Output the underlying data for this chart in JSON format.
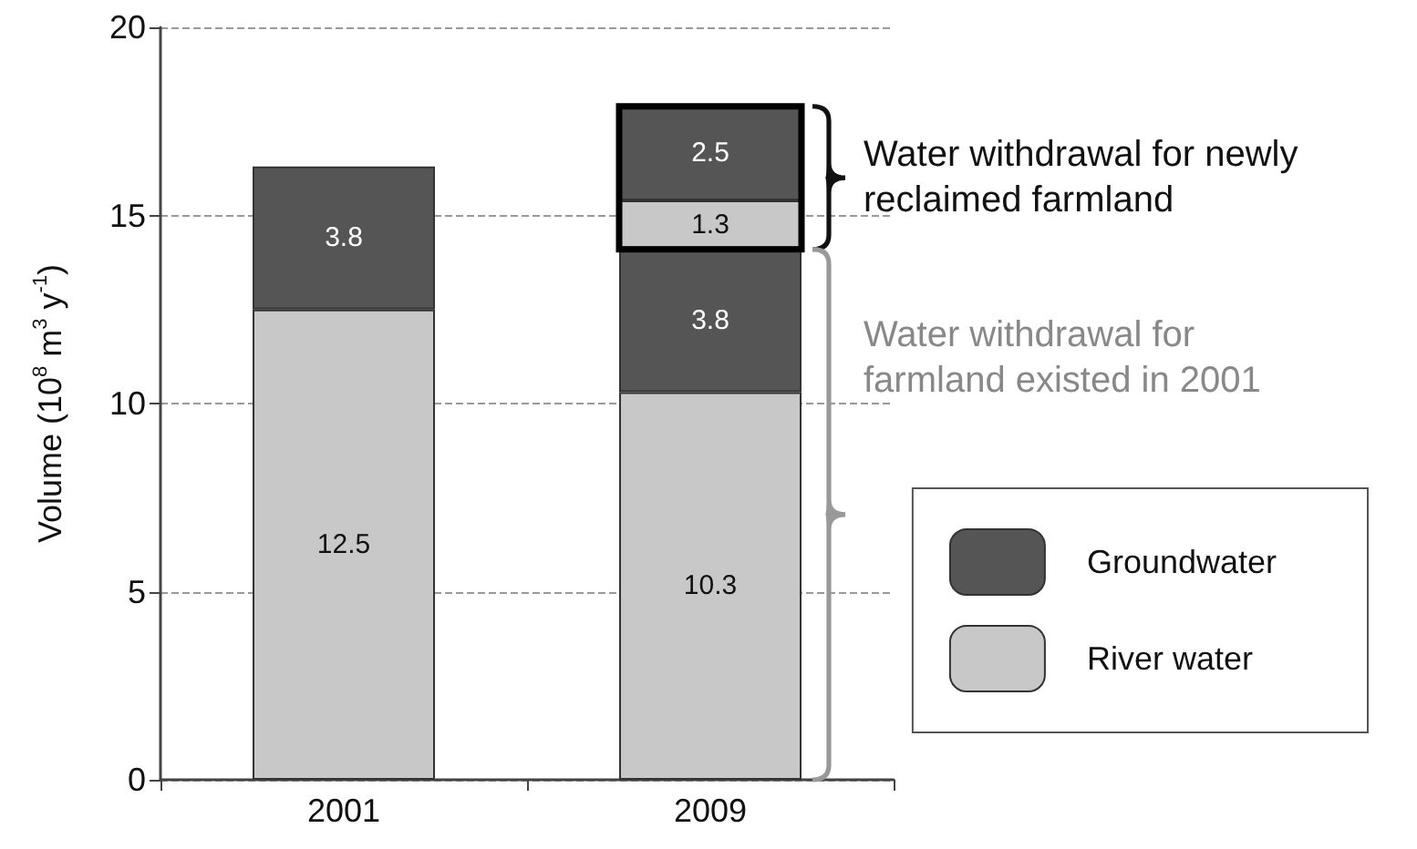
{
  "chart_data": {
    "type": "bar",
    "stacked": true,
    "categories": [
      "2001",
      "2009"
    ],
    "ylabel": "Volume (10$^{8}$ m$^{3}$ y$^{-1}$)",
    "ylim": [
      0,
      20
    ],
    "yticks": [
      0,
      5,
      10,
      15,
      20
    ],
    "grid": "y",
    "series": [
      {
        "name": "River water",
        "color": "#c8c8c8",
        "values": [
          12.5,
          10.3
        ]
      },
      {
        "name": "Groundwater",
        "color": "#555555",
        "values": [
          3.8,
          3.8
        ]
      },
      {
        "color": "#c8c8c8",
        "values": [
          null,
          1.3
        ]
      },
      {
        "color": "#555555",
        "values": [
          null,
          2.5
        ]
      }
    ],
    "data_labels": true,
    "legend": "right",
    "annotations": [
      "Water withdrawal for newly reclaimed farmland",
      "Water withdrawal for farmland existed in 2001"
    ]
  }
}
